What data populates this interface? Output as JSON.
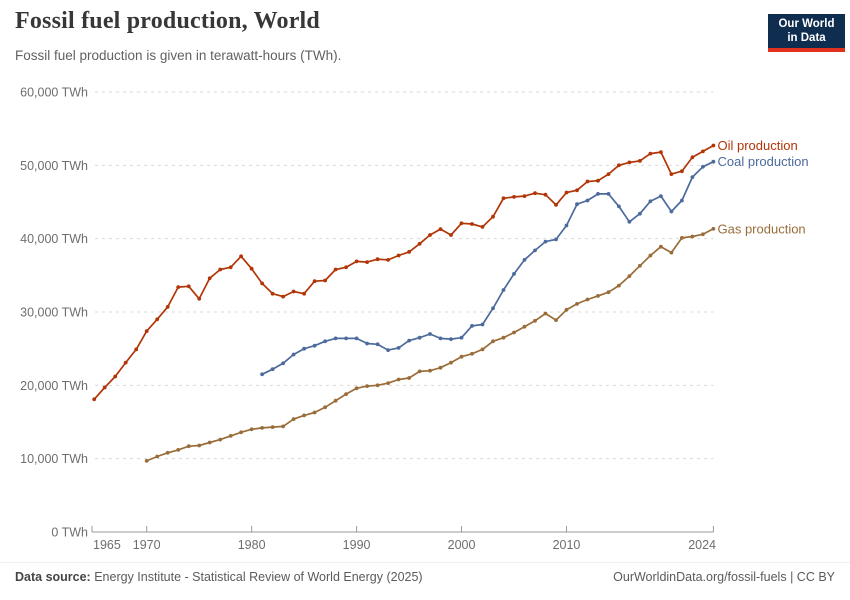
{
  "header": {
    "title": "Fossil fuel production, World",
    "subtitle": "Fossil fuel production is given in terawatt-hours (TWh).",
    "logo_line1": "Our World",
    "logo_line2": "in Data",
    "logo_bg_color": "#0f2d4e",
    "logo_stripe_color": "#e0311f"
  },
  "footer": {
    "source_label": "Data source:",
    "source_value": " Energy Institute - Statistical Review of World Energy (2025)",
    "url": "OurWorldinData.org/fossil-fuels",
    "divider": " | ",
    "license": "CC BY"
  },
  "chart_data": {
    "type": "line",
    "title": "Fossil fuel production, World",
    "unit": "TWh",
    "grid": true,
    "legend_position": "right-of-line-end",
    "xlim": [
      1964.4,
      2024
    ],
    "ylim": [
      0,
      60000
    ],
    "x_tick_labels": [
      "1965",
      "1970",
      "1980",
      "1990",
      "2000",
      "2010",
      "2024"
    ],
    "x_tick_years": [
      1965,
      1970,
      1980,
      1990,
      2000,
      2010,
      2024
    ],
    "y_ticks": [
      {
        "value": 0,
        "label": "0 TWh"
      },
      {
        "value": 10000,
        "label": "10,000 TWh"
      },
      {
        "value": 20000,
        "label": "20,000 TWh"
      },
      {
        "value": 30000,
        "label": "30,000 TWh"
      },
      {
        "value": 40000,
        "label": "40,000 TWh"
      },
      {
        "value": 50000,
        "label": "50,000 TWh"
      },
      {
        "value": 60000,
        "label": "60,000 TWh"
      }
    ],
    "colors": {
      "grid": "#dadada",
      "axis": "#999999",
      "tick_text": "#6e6e6e"
    },
    "series": [
      {
        "name": "Oil production",
        "id": "oil",
        "color": "#B13507",
        "start_year": 1965,
        "values": [
          18100,
          19700,
          21200,
          23100,
          24900,
          27400,
          29000,
          30700,
          33400,
          33500,
          31800,
          34600,
          35800,
          36100,
          37600,
          35900,
          33900,
          32500,
          32100,
          32800,
          32500,
          34200,
          34300,
          35800,
          36100,
          36900,
          36800,
          37200,
          37100,
          37700,
          38200,
          39300,
          40500,
          41300,
          40500,
          42100,
          42000,
          41600,
          43000,
          45500,
          45700,
          45800,
          46200,
          46000,
          44600,
          46300,
          46600,
          47800,
          47900,
          48800,
          50000,
          50400,
          50600,
          51600,
          51800,
          48800,
          49200,
          51100,
          51900,
          52700
        ]
      },
      {
        "name": "Coal production",
        "id": "coal",
        "color": "#4C6A9C",
        "start_year": 1981,
        "values": [
          21500,
          22200,
          23000,
          24200,
          25000,
          25400,
          26000,
          26400,
          26400,
          26400,
          25700,
          25600,
          24800,
          25100,
          26100,
          26500,
          27000,
          26400,
          26300,
          26500,
          28100,
          28300,
          30500,
          33000,
          35200,
          37100,
          38400,
          39600,
          39900,
          41800,
          44700,
          45200,
          46100,
          46100,
          44400,
          42300,
          43400,
          45100,
          45800,
          43700,
          45200,
          48400,
          49800,
          50500
        ]
      },
      {
        "name": "Gas production",
        "id": "gas",
        "color": "#996D39",
        "start_year": 1970,
        "values": [
          9700,
          10300,
          10800,
          11200,
          11700,
          11800,
          12200,
          12600,
          13100,
          13600,
          14000,
          14200,
          14300,
          14400,
          15400,
          15900,
          16300,
          17000,
          17900,
          18800,
          19600,
          19900,
          20000,
          20300,
          20800,
          21000,
          21900,
          22000,
          22400,
          23100,
          23900,
          24300,
          24900,
          26000,
          26500,
          27200,
          28000,
          28800,
          29800,
          28900,
          30300,
          31100,
          31700,
          32200,
          32700,
          33600,
          34900,
          36300,
          37700,
          38900,
          38100,
          40100,
          40300,
          40600,
          41350
        ]
      }
    ]
  }
}
